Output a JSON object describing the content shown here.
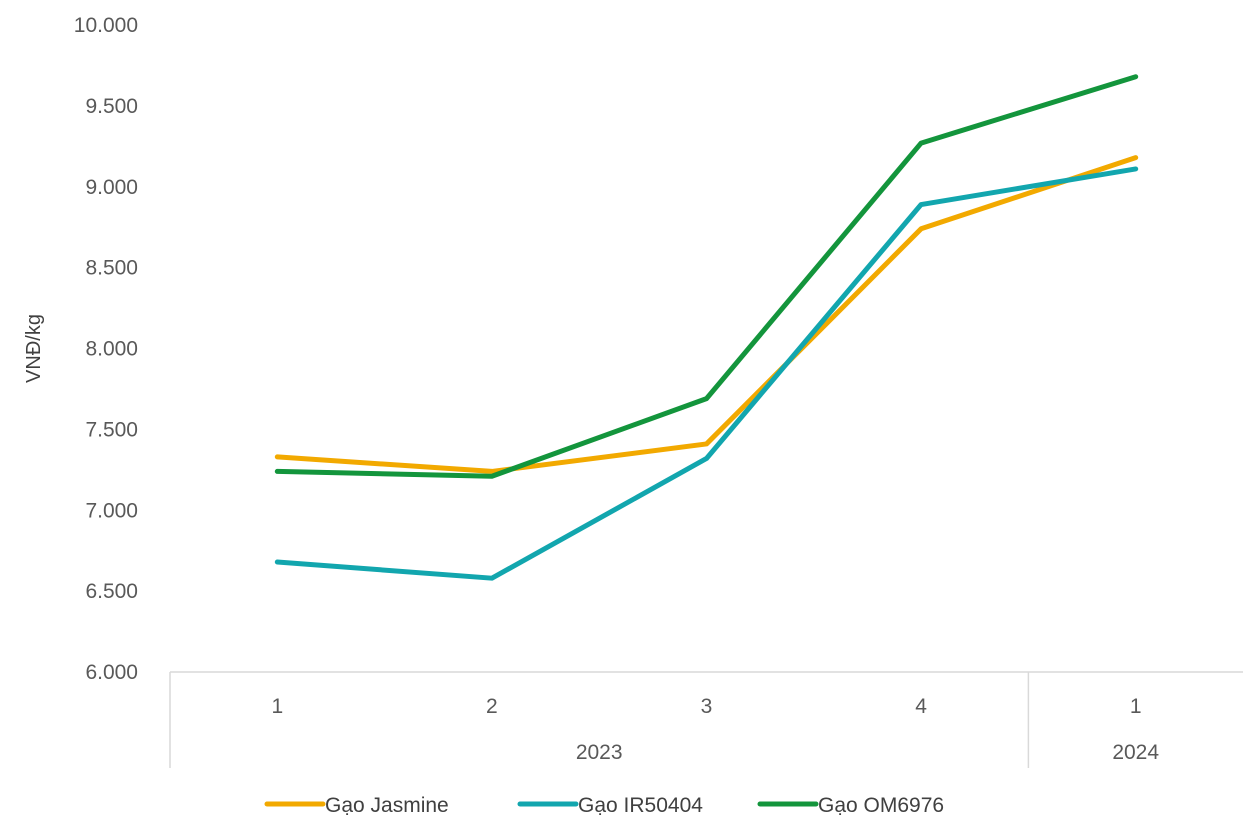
{
  "chart_data": {
    "type": "line",
    "title": "",
    "ylabel": "VNĐ/kg",
    "xlabel": "",
    "ylim": [
      6000,
      10000
    ],
    "ytick_step": 500,
    "ytick_labels": [
      "6.000",
      "6.500",
      "7.000",
      "7.500",
      "8.000",
      "8.500",
      "9.000",
      "9.500",
      "10.000"
    ],
    "categories": [
      "1",
      "2",
      "3",
      "4",
      "1"
    ],
    "category_groups": [
      {
        "label": "2023",
        "count": 4
      },
      {
        "label": "2024",
        "count": 1
      }
    ],
    "series": [
      {
        "name": "Gạo Jasmine",
        "color": "#f2a900",
        "values": [
          7330,
          7240,
          7410,
          8740,
          9180
        ]
      },
      {
        "name": "Gạo IR50404",
        "color": "#12a6ae",
        "values": [
          6680,
          6580,
          7320,
          8890,
          9110
        ]
      },
      {
        "name": "Gạo OM6976",
        "color": "#13953c",
        "values": [
          7240,
          7210,
          7690,
          9270,
          9680
        ]
      }
    ],
    "grid": false,
    "legend_position": "bottom"
  }
}
